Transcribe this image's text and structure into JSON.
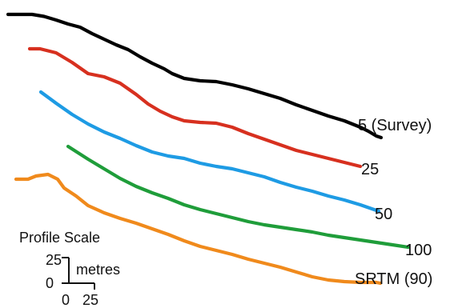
{
  "chart_data": {
    "type": "line",
    "title": "",
    "xlabel": "",
    "ylabel": "",
    "grid": false,
    "legend": "labels at line ends",
    "series": [
      {
        "name": "5 (Survey)",
        "color": "#000000",
        "x": [
          0,
          30,
          45,
          60,
          75,
          90,
          105,
          120,
          135,
          150,
          165,
          180,
          195,
          205,
          220,
          240,
          260,
          280,
          300,
          320,
          340,
          360,
          380,
          400,
          420,
          440,
          450,
          460,
          466
        ],
        "y": [
          0,
          0,
          2.5,
          7,
          12,
          16,
          24,
          31,
          38,
          44,
          53,
          61,
          68,
          74,
          80,
          83,
          84,
          88,
          93,
          99,
          105,
          113,
          120,
          127,
          133,
          141,
          146,
          152,
          154
        ]
      },
      {
        "name": "25",
        "color": "#d7301f",
        "x": [
          27,
          40,
          60,
          80,
          100,
          120,
          140,
          160,
          175,
          190,
          205,
          220,
          240,
          260,
          280,
          300,
          320,
          340,
          360,
          380,
          400,
          420,
          440
        ],
        "y": [
          43,
          43,
          48,
          60,
          74,
          78,
          86,
          100,
          112,
          121,
          128,
          133,
          135,
          136,
          141,
          149,
          156,
          163,
          170,
          175,
          180,
          185,
          190
        ]
      },
      {
        "name": "50",
        "color": "#1e9be4",
        "x": [
          41,
          60,
          80,
          100,
          120,
          140,
          160,
          180,
          200,
          220,
          240,
          260,
          280,
          300,
          320,
          340,
          360,
          380,
          400,
          420,
          440,
          463
        ],
        "y": [
          97,
          111,
          125,
          137,
          147,
          155,
          164,
          172,
          177,
          180,
          186,
          190,
          193,
          198,
          203,
          210,
          216,
          221,
          227,
          232,
          238,
          246
        ]
      },
      {
        "name": "100",
        "color": "#1f9d3a",
        "x": [
          75,
          100,
          120,
          140,
          160,
          180,
          200,
          220,
          240,
          260,
          280,
          300,
          320,
          340,
          360,
          380,
          400,
          420,
          440,
          460,
          480,
          500
        ],
        "y": [
          165,
          181,
          193,
          205,
          215,
          223,
          230,
          238,
          244,
          249,
          254,
          259,
          263,
          266,
          269,
          272,
          276,
          279,
          282,
          285,
          288,
          291
        ]
      },
      {
        "name": "SRTM (90)",
        "color": "#f08a1c",
        "x": [
          10,
          25,
          35,
          50,
          62,
          70,
          85,
          100,
          120,
          140,
          160,
          180,
          200,
          220,
          240,
          260,
          280,
          300,
          320,
          340,
          360,
          380,
          400,
          420,
          440,
          460,
          465
        ],
        "y": [
          206,
          206,
          202,
          200,
          206,
          217,
          227,
          239,
          248,
          255,
          261,
          268,
          275,
          283,
          290,
          295,
          300,
          306,
          311,
          316,
          322,
          328,
          332,
          334,
          335,
          335,
          336
        ]
      }
    ]
  },
  "scale": {
    "title": "Profile Scale",
    "vertical_units": "metres",
    "vertical_ticks": [
      "25",
      "0"
    ],
    "horizontal_ticks": [
      "0",
      "25"
    ]
  }
}
